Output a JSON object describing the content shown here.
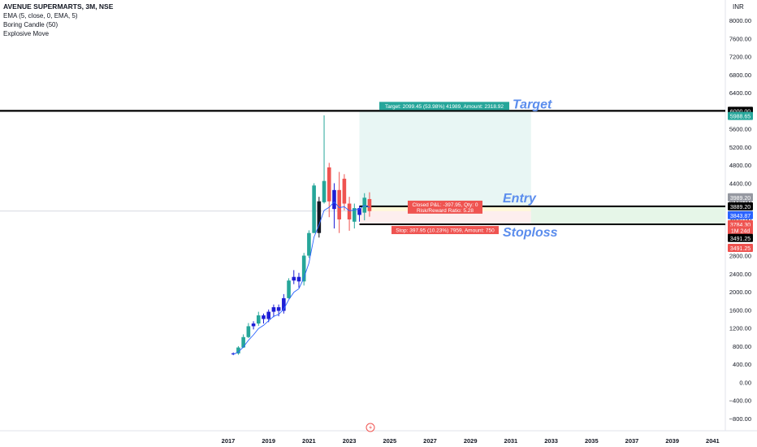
{
  "header": {
    "symbol_line": "AVENUE SUPERMARTS, 3M, NSE",
    "indicators": [
      "EMA (5, close, 0, EMA, 5)",
      "Boring Candle (50)",
      "Explosive Move"
    ],
    "currency": "INR"
  },
  "colors": {
    "up": "#26a69a",
    "down": "#ef5350",
    "boring": "#1e1ed6",
    "explosive": "#131722",
    "ema": "#2962ff",
    "annotation": "#5b8ded",
    "target_zone": "#e8f6f4",
    "stop_zone": "#fdeeee",
    "entry_zone": "#fff8d8"
  },
  "chart_data": {
    "type": "candlestick",
    "title": "AVENUE SUPERMARTS, 3M, NSE",
    "xlabel": "",
    "ylabel": "",
    "ylim": [
      -1000,
      8300
    ],
    "yticks": [
      "8000.00",
      "7600.00",
      "7200.00",
      "6800.00",
      "6400.00",
      "6000.00",
      "5600.00",
      "5200.00",
      "4800.00",
      "4400.00",
      "4000.00",
      "3600.00",
      "3200.00",
      "2800.00",
      "2400.00",
      "2000.00",
      "1600.00",
      "1200.00",
      "800.00",
      "400.00",
      "0.00",
      "−400.00",
      "−800.00"
    ],
    "xticks": [
      "2017",
      "2019",
      "2021",
      "2023",
      "2025",
      "2027",
      "2029",
      "2031",
      "2033",
      "2035",
      "2037",
      "2039",
      "2041"
    ],
    "xlim": [
      2016.3,
      2041.9
    ],
    "candles": [
      {
        "t": 2017.25,
        "o": 620,
        "h": 660,
        "l": 600,
        "c": 640,
        "k": "boring"
      },
      {
        "t": 2017.5,
        "o": 640,
        "h": 800,
        "l": 610,
        "c": 770,
        "k": "up"
      },
      {
        "t": 2017.75,
        "o": 770,
        "h": 1060,
        "l": 760,
        "c": 1000,
        "k": "up"
      },
      {
        "t": 2018.0,
        "o": 1000,
        "h": 1310,
        "l": 980,
        "c": 1240,
        "k": "up"
      },
      {
        "t": 2018.25,
        "o": 1240,
        "h": 1350,
        "l": 1170,
        "c": 1300,
        "k": "boring"
      },
      {
        "t": 2018.5,
        "o": 1300,
        "h": 1560,
        "l": 1250,
        "c": 1480,
        "k": "up"
      },
      {
        "t": 2018.75,
        "o": 1480,
        "h": 1520,
        "l": 1300,
        "c": 1400,
        "k": "boring"
      },
      {
        "t": 2019.0,
        "o": 1400,
        "h": 1610,
        "l": 1330,
        "c": 1560,
        "k": "boring"
      },
      {
        "t": 2019.25,
        "o": 1560,
        "h": 1720,
        "l": 1440,
        "c": 1660,
        "k": "boring"
      },
      {
        "t": 2019.5,
        "o": 1660,
        "h": 1720,
        "l": 1460,
        "c": 1580,
        "k": "boring"
      },
      {
        "t": 2019.75,
        "o": 1580,
        "h": 1950,
        "l": 1520,
        "c": 1860,
        "k": "boring"
      },
      {
        "t": 2020.0,
        "o": 1860,
        "h": 2300,
        "l": 1850,
        "c": 2250,
        "k": "up"
      },
      {
        "t": 2020.25,
        "o": 2250,
        "h": 2480,
        "l": 2170,
        "c": 2330,
        "k": "boring"
      },
      {
        "t": 2020.5,
        "o": 2330,
        "h": 2420,
        "l": 2090,
        "c": 2230,
        "k": "boring"
      },
      {
        "t": 2020.75,
        "o": 2230,
        "h": 2860,
        "l": 2140,
        "c": 2800,
        "k": "up"
      },
      {
        "t": 2021.0,
        "o": 2800,
        "h": 3360,
        "l": 2750,
        "c": 3300,
        "k": "up"
      },
      {
        "t": 2021.25,
        "o": 3300,
        "h": 4400,
        "l": 3300,
        "c": 4350,
        "k": "up"
      },
      {
        "t": 2021.5,
        "o": 3300,
        "h": 4100,
        "l": 3200,
        "c": 4000,
        "k": "explosive"
      },
      {
        "t": 2021.75,
        "o": 3980,
        "h": 5900,
        "l": 3950,
        "c": 4450,
        "k": "up"
      },
      {
        "t": 2022.0,
        "o": 4750,
        "h": 4850,
        "l": 3650,
        "c": 4000,
        "k": "down"
      },
      {
        "t": 2022.25,
        "o": 3830,
        "h": 4400,
        "l": 3400,
        "c": 4250,
        "k": "boring"
      },
      {
        "t": 2022.5,
        "o": 4250,
        "h": 4650,
        "l": 3300,
        "c": 3600,
        "k": "down"
      },
      {
        "t": 2022.75,
        "o": 4500,
        "h": 4600,
        "l": 3800,
        "c": 3950,
        "k": "down"
      },
      {
        "t": 2023.0,
        "o": 3950,
        "h": 4100,
        "l": 3350,
        "c": 3600,
        "k": "down"
      },
      {
        "t": 2023.25,
        "o": 3550,
        "h": 3950,
        "l": 3400,
        "c": 3850,
        "k": "up"
      },
      {
        "t": 2023.5,
        "o": 3700,
        "h": 3900,
        "l": 3550,
        "c": 3850,
        "k": "boring"
      },
      {
        "t": 2023.75,
        "o": 3750,
        "h": 4180,
        "l": 3580,
        "c": 4080,
        "k": "up"
      },
      {
        "t": 2024.0,
        "o": 4050,
        "h": 4200,
        "l": 3660,
        "c": 3784,
        "k": "down"
      }
    ],
    "ema": [
      [
        2017.25,
        620
      ],
      [
        2017.5,
        670
      ],
      [
        2017.75,
        780
      ],
      [
        2018.0,
        930
      ],
      [
        2018.25,
        1050
      ],
      [
        2018.5,
        1190
      ],
      [
        2018.75,
        1260
      ],
      [
        2019.0,
        1360
      ],
      [
        2019.25,
        1460
      ],
      [
        2019.5,
        1500
      ],
      [
        2019.75,
        1620
      ],
      [
        2020.0,
        1830
      ],
      [
        2020.25,
        1990
      ],
      [
        2020.5,
        2070
      ],
      [
        2020.75,
        2310
      ],
      [
        2021.0,
        2640
      ],
      [
        2021.25,
        3210
      ],
      [
        2021.5,
        3480
      ],
      [
        2021.75,
        3800
      ],
      [
        2022.0,
        3870
      ],
      [
        2022.25,
        3990
      ],
      [
        2022.5,
        3860
      ],
      [
        2022.75,
        3880
      ],
      [
        2023.0,
        3790
      ],
      [
        2023.25,
        3810
      ],
      [
        2023.5,
        3830
      ],
      [
        2023.75,
        3910
      ],
      [
        2024.0,
        3870
      ]
    ],
    "levels": {
      "target": 6000.0,
      "entry": 3889.2,
      "stop": 3491.25,
      "current": 3784.3
    },
    "position": {
      "x_start": 2023.5,
      "x_end": 2032.0,
      "target_y": 5988.65,
      "entry_y": 3889.2,
      "stop_y": 3491.25,
      "current_y": 3784.3,
      "zone_extends_to": 2041.9
    },
    "price_labels": [
      {
        "text": "6000.00",
        "y": 6000.0,
        "style": "black"
      },
      {
        "text": "5988.65",
        "y": 5888.65,
        "style": "teal"
      },
      {
        "text": "3989.20",
        "y": 4089.2,
        "style": "grey"
      },
      {
        "text": "3889.20",
        "y": 3889.2,
        "style": "black"
      },
      {
        "text": "3843.87",
        "y": 3693.87,
        "style": "blue"
      },
      {
        "text": "3784.30",
        "y": 3494.3,
        "style": "red"
      },
      {
        "text": "1M 24d",
        "y": 3360,
        "style": "red_small"
      },
      {
        "text": "3491.25",
        "y": 3191.25,
        "style": "black"
      },
      {
        "text": "3491.25",
        "y": 2971.25,
        "style": "red"
      }
    ],
    "annotations": {
      "target_word": "Target",
      "entry_word": "Entry",
      "stoploss_word": "Stoploss",
      "target_box": "Target: 2099.45 (53.98%) 41989, Amount: 2318.92",
      "pnl_line1": "Closed P&L: -397.95, Qty: 0",
      "pnl_line2": "Risk/Reward Ratio: 5.28",
      "stop_box": "Stop: 397.95 (10.23%) 7959, Amount: 750"
    }
  }
}
